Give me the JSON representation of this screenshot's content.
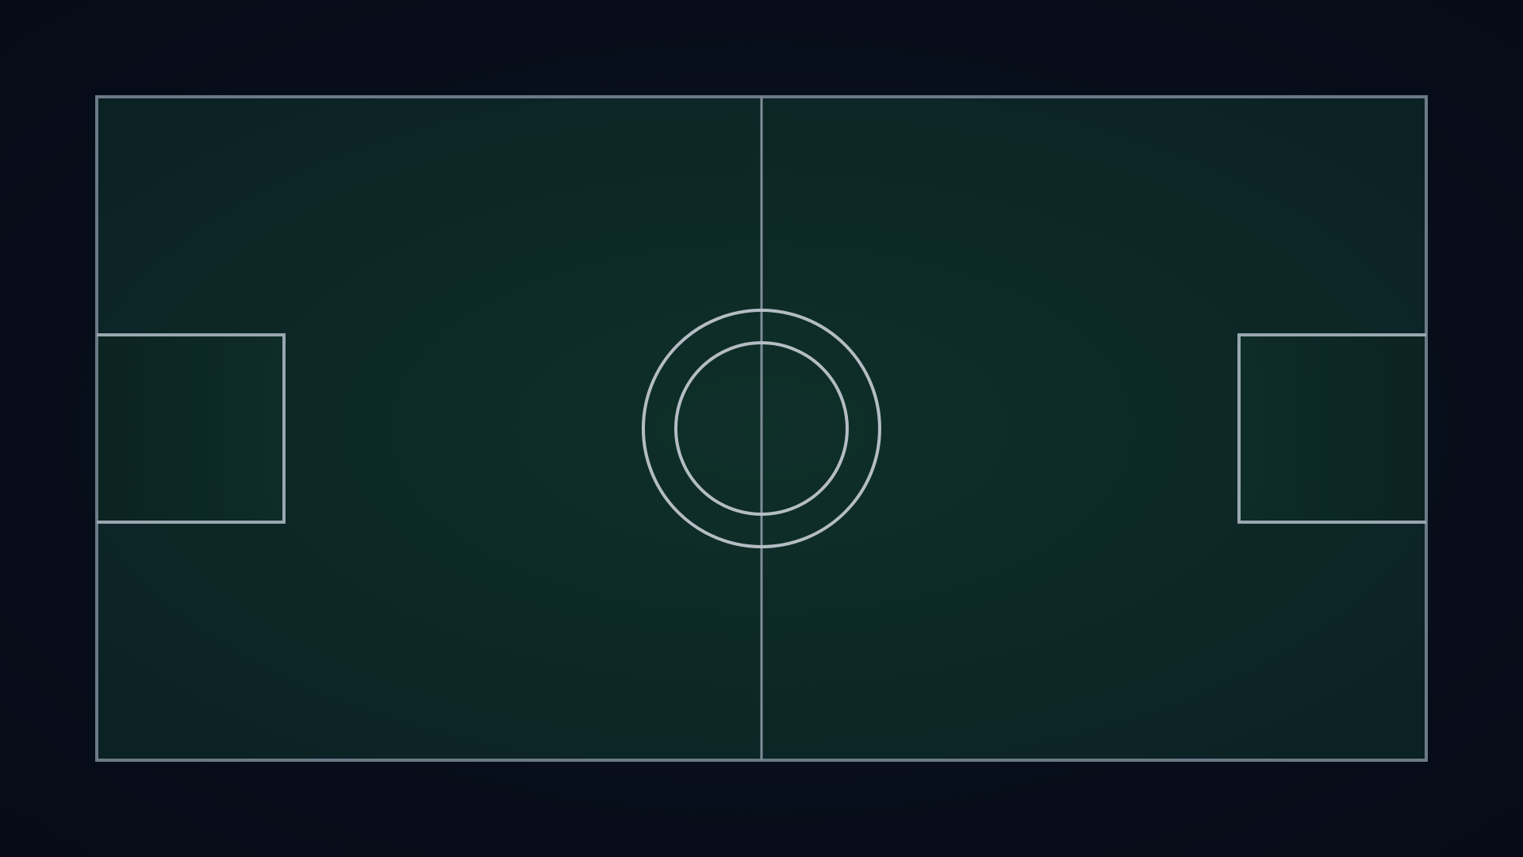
{
  "scene": {
    "type": "arena-pitch-top-down",
    "colors": {
      "background": "#070d1a",
      "field_center": "#0f2f29",
      "field_edge": "#0b2225",
      "boundary_line": "#6b7a86",
      "goal_line": "#9aa6b0",
      "circle_line": "#b4bcc4"
    },
    "elements": [
      "pitch-boundary",
      "center-line",
      "center-circle-outer",
      "center-circle-inner",
      "left-goal-area",
      "right-goal-area"
    ]
  }
}
